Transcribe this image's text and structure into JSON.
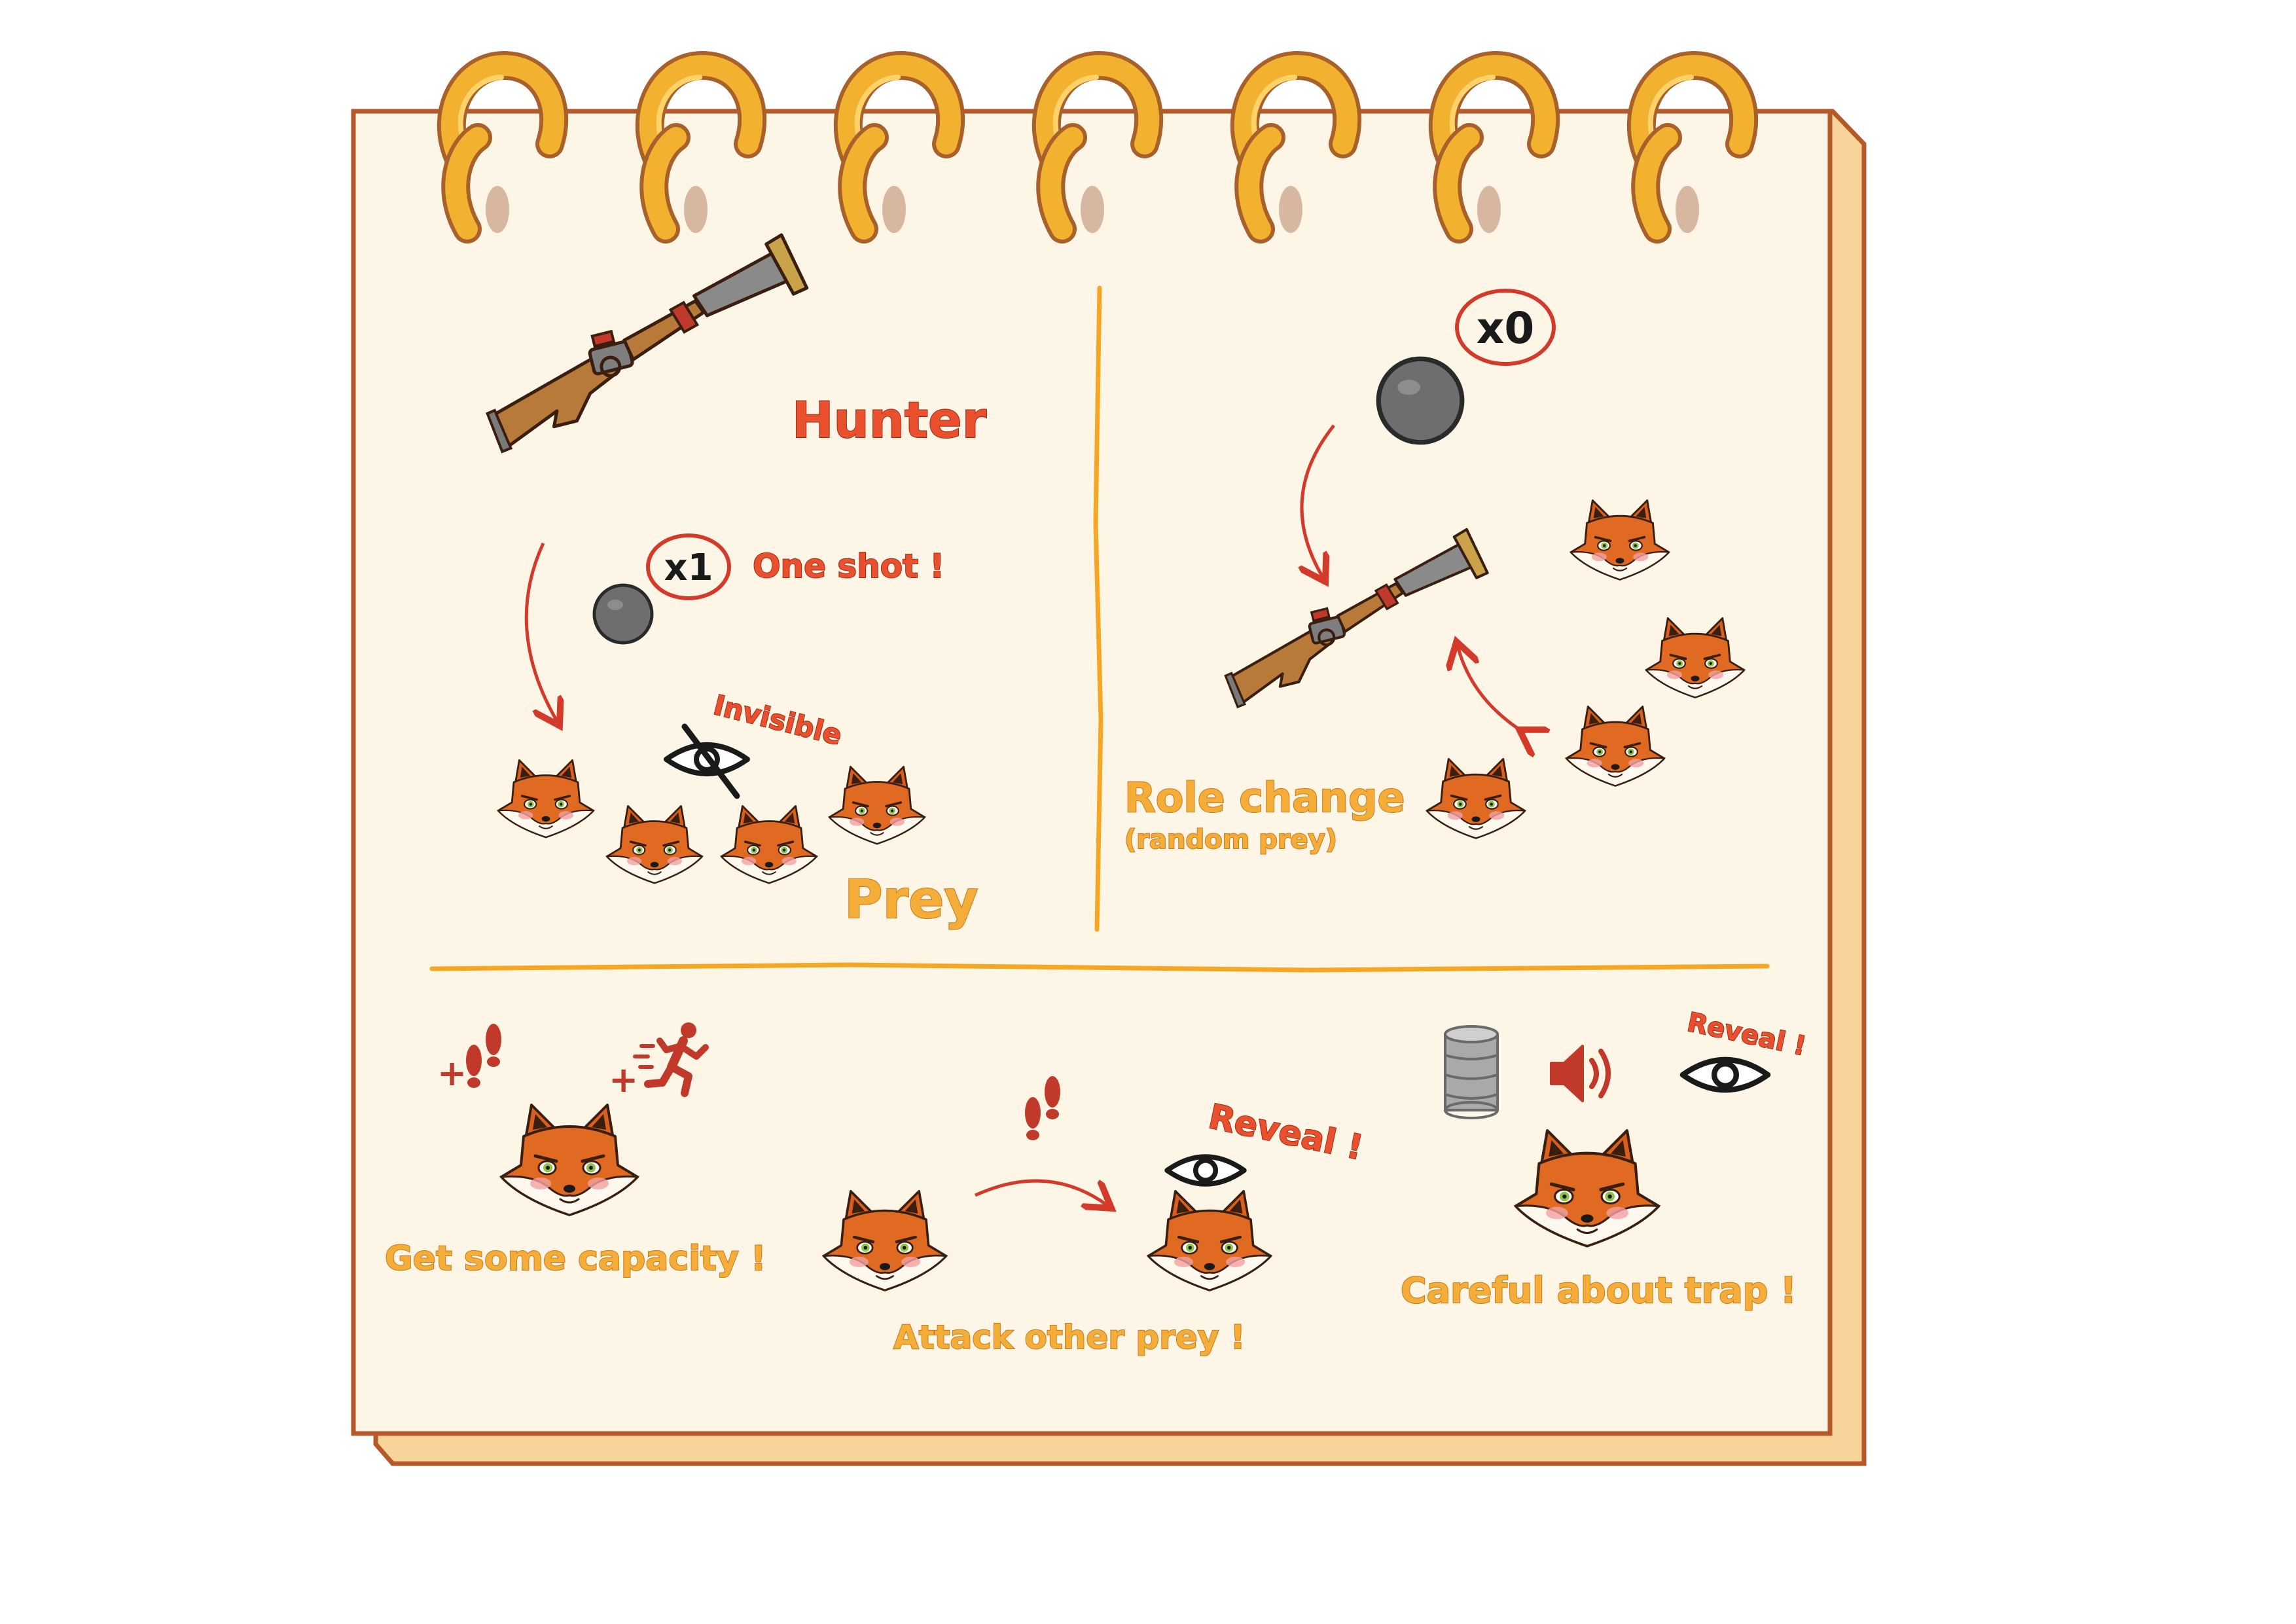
{
  "top_left": {
    "hunter_label": "Hunter",
    "ammo_count": "x1",
    "one_shot_label": "One shot !",
    "invisible_label": "Invisible",
    "prey_label": "Prey"
  },
  "top_right": {
    "ammo_count": "x0",
    "role_change_label": "Role change",
    "random_prey_label": "(random prey)"
  },
  "bottom": {
    "capacity_label": "Get some capacity !",
    "attack_label": "Attack other prey !",
    "reveal_label": "Reveal !",
    "reveal_small_label": "Reveal !",
    "trap_label": "Careful about trap !",
    "plus_steps": "+",
    "plus_run": "+"
  },
  "colors": {
    "paper": "#fdf6e7",
    "border": "#b5582a",
    "page_edge": "#f8d49a",
    "ring_gold": "#f2b230",
    "divider": "#f5a623",
    "red_text": "#e8502e",
    "orange_text": "#f5ad3a"
  }
}
